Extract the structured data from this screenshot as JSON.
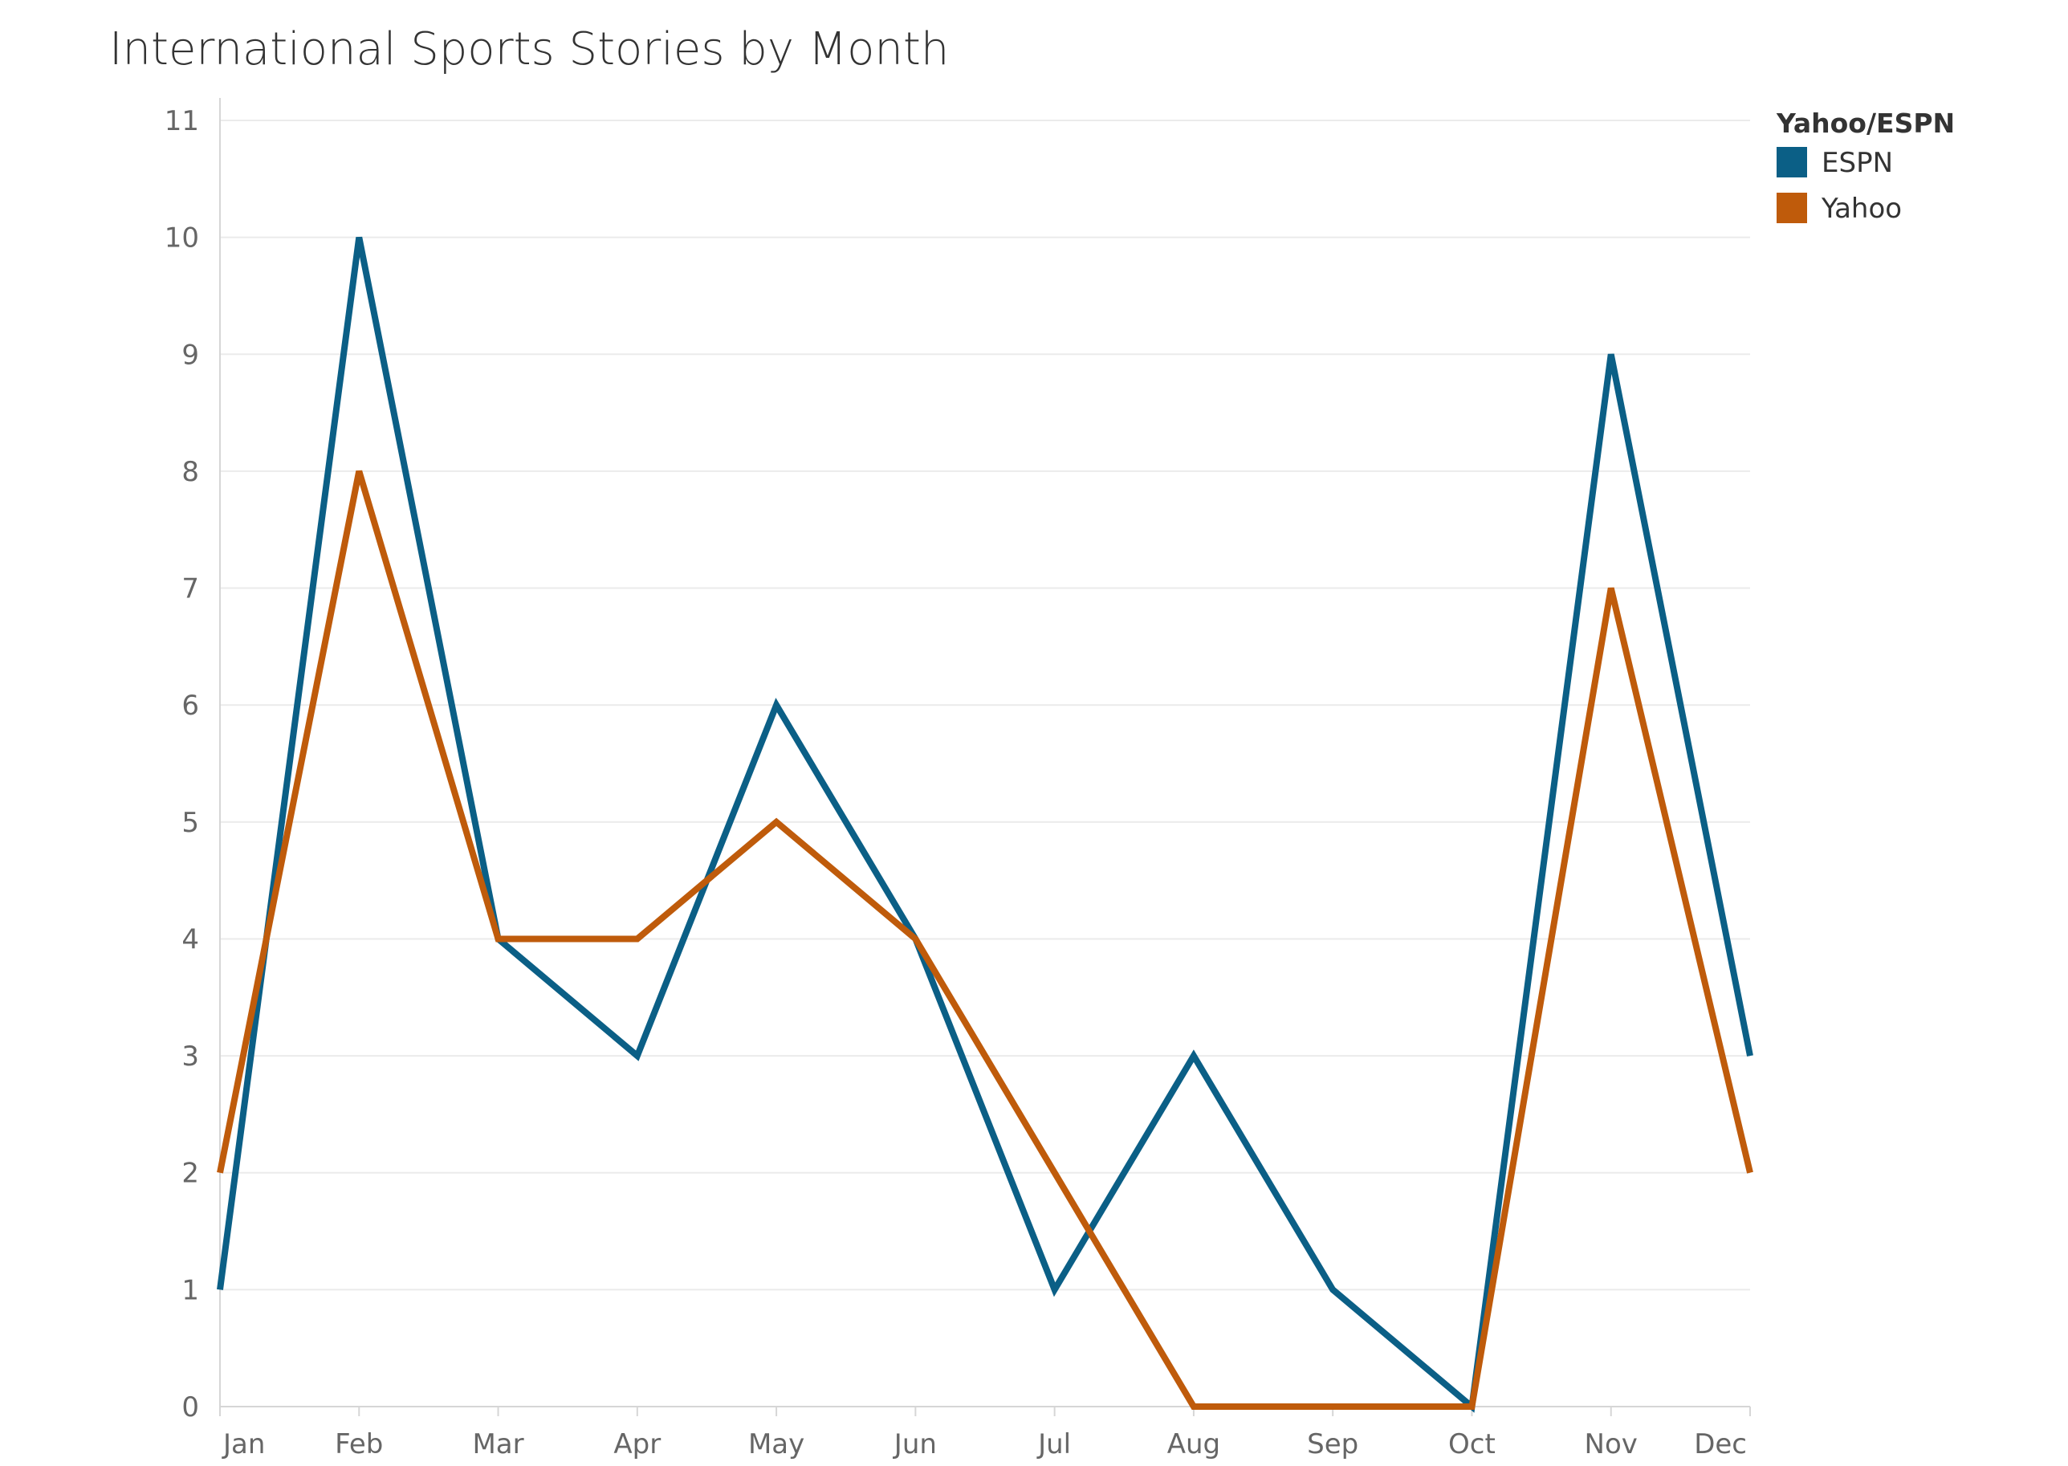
{
  "chart_data": {
    "type": "line",
    "title": "International Sports Stories by Month",
    "xlabel": "",
    "ylabel": "",
    "categories": [
      "Jan",
      "Feb",
      "Mar",
      "Apr",
      "May",
      "Jun",
      "Jul",
      "Aug",
      "Sep",
      "Oct",
      "Nov",
      "Dec"
    ],
    "ylim": [
      0,
      11
    ],
    "yticks": [
      0,
      1,
      2,
      3,
      4,
      5,
      6,
      7,
      8,
      9,
      10,
      11
    ],
    "grid": true,
    "legend": {
      "title": "Yahoo/ESPN",
      "placement": "top-right"
    },
    "series": [
      {
        "name": "ESPN",
        "color": "#0b5f86",
        "values": [
          1,
          10,
          4,
          3,
          6,
          4,
          1,
          3,
          1,
          0,
          9,
          3
        ]
      },
      {
        "name": "Yahoo",
        "color": "#bf5b0b",
        "values": [
          2,
          8,
          4,
          4,
          5,
          4,
          2,
          0,
          0,
          0,
          7,
          2
        ]
      }
    ]
  }
}
